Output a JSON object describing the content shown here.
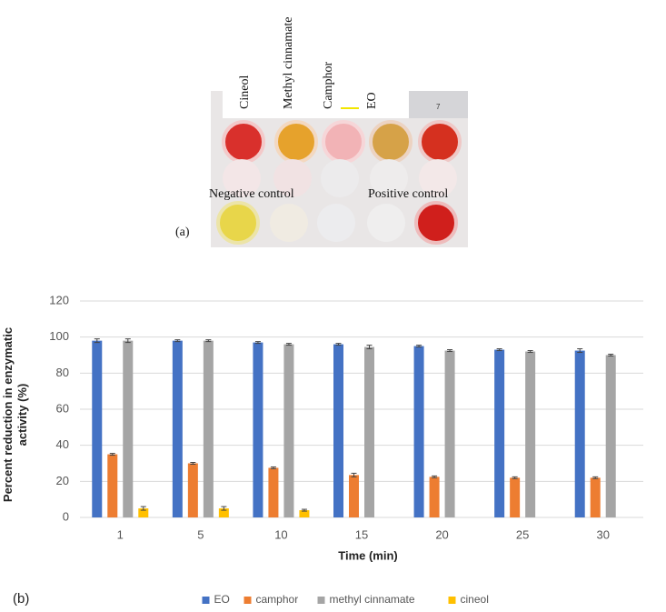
{
  "figure_a": {
    "panel_label": "(a)",
    "well_labels": [
      "Cineol",
      "Methyl cinnamate",
      "Camphor",
      "EO"
    ],
    "plate_number": "7",
    "negative_label": "Negative control",
    "positive_label": "Positive control"
  },
  "panel_b_label": "(b)",
  "chart_data": {
    "type": "bar",
    "x_label": "Time (min)",
    "y_label": "Percent reduction in enzymatic activity (%)",
    "categories": [
      "1",
      "5",
      "10",
      "15",
      "20",
      "25",
      "30"
    ],
    "series": [
      {
        "name": "EO",
        "color": "#4472c4",
        "values": [
          98,
          98,
          97,
          96,
          95,
          93,
          92.5
        ],
        "errors": [
          1,
          0.5,
          0.5,
          0.5,
          0.5,
          0.5,
          1
        ]
      },
      {
        "name": "camphor",
        "color": "#ed7d31",
        "values": [
          35,
          30,
          27.5,
          23.5,
          22.5,
          22,
          22
        ],
        "errors": [
          0.5,
          0.5,
          0.5,
          1,
          0.5,
          0.5,
          0.5
        ]
      },
      {
        "name": "methyl cinnamate",
        "color": "#a5a5a5",
        "values": [
          98,
          98,
          96,
          94.5,
          92.5,
          92,
          90
        ],
        "errors": [
          1,
          0.5,
          0.5,
          1,
          0.5,
          0.5,
          0.5
        ]
      },
      {
        "name": "cineol",
        "color": "#ffc000",
        "values": [
          5,
          5,
          4,
          null,
          null,
          null,
          null
        ],
        "errors": [
          1,
          1,
          0.5,
          null,
          null,
          null,
          null
        ]
      }
    ],
    "ylim": [
      0,
      120
    ],
    "yticks": [
      0,
      20,
      40,
      60,
      80,
      100,
      120
    ],
    "grid": true,
    "legend": "bottom"
  }
}
